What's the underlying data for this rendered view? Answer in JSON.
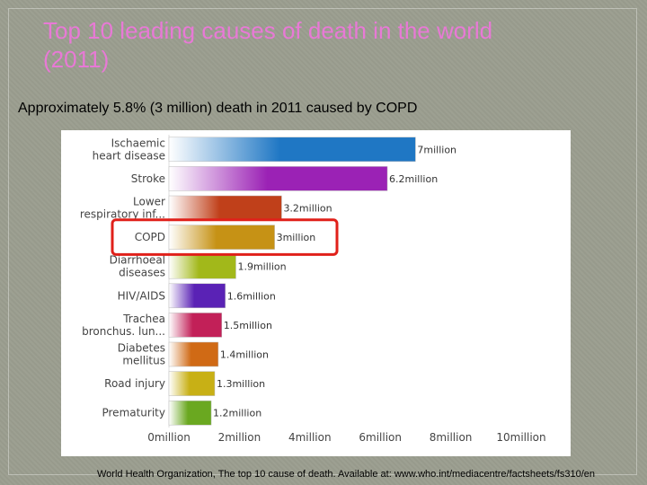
{
  "slide": {
    "title_line1": "Top 10 leading causes of death in the world",
    "title_line2": "(2011)",
    "subtitle": "Approximately 5.8% (3 million) death in 2011 caused by COPD",
    "source": "World Health Organization, The top 10 cause of death. Available at: www.who.int/mediacentre/factsheets/fs310/en"
  },
  "chart_data": {
    "type": "bar",
    "orientation": "horizontal",
    "title": "",
    "xlabel": "",
    "ylabel": "",
    "categories": [
      [
        "Ischaemic",
        "heart disease"
      ],
      [
        "Stroke"
      ],
      [
        "Lower",
        "respiratory inf..."
      ],
      [
        "COPD"
      ],
      [
        "Diarrhoeal",
        "diseases"
      ],
      [
        "HIV/AIDS"
      ],
      [
        "Trachea",
        "bronchus. lun..."
      ],
      [
        "Diabetes",
        "mellitus"
      ],
      [
        "Road injury"
      ],
      [
        "Prematurity"
      ]
    ],
    "values": [
      7,
      6.2,
      3.2,
      3,
      1.9,
      1.6,
      1.5,
      1.4,
      1.3,
      1.2
    ],
    "value_labels": [
      "7million",
      "6.2million",
      "3.2million",
      "3million",
      "1.9million",
      "1.6million",
      "1.5million",
      "1.4million",
      "1.3million",
      "1.2million"
    ],
    "colors": [
      "#1f77c4",
      "#9b22b5",
      "#c0401a",
      "#c69215",
      "#a2b81a",
      "#5a22b5",
      "#c22058",
      "#d06a15",
      "#c8b015",
      "#6aa820"
    ],
    "xlim": [
      0,
      10
    ],
    "xticks": [
      0,
      2,
      4,
      6,
      8,
      10
    ],
    "xtick_labels": [
      "0million",
      "2million",
      "4million",
      "6million",
      "8million",
      "10million"
    ],
    "highlighted_category": "COPD",
    "highlight_color": "#e0201a",
    "grid": false
  }
}
